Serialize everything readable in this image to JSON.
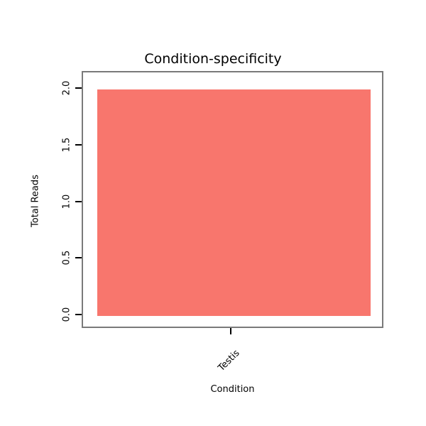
{
  "chart_data": {
    "type": "bar",
    "title": "Condition-specificity",
    "xlabel": "Condition",
    "ylabel": "Total Reads",
    "categories": [
      "Testis"
    ],
    "values": [
      2
    ],
    "ylim": [
      0,
      2
    ],
    "yticks": [
      0,
      0.5,
      1,
      1.5,
      2
    ],
    "ytick_labels": [
      "0.0",
      "0.5",
      "1.0",
      "1.5",
      "2.0"
    ],
    "bar_color": "#F8766D",
    "axis_color": "#000000",
    "border_color": "#7a7a7a",
    "legend": "none",
    "grid": false
  }
}
